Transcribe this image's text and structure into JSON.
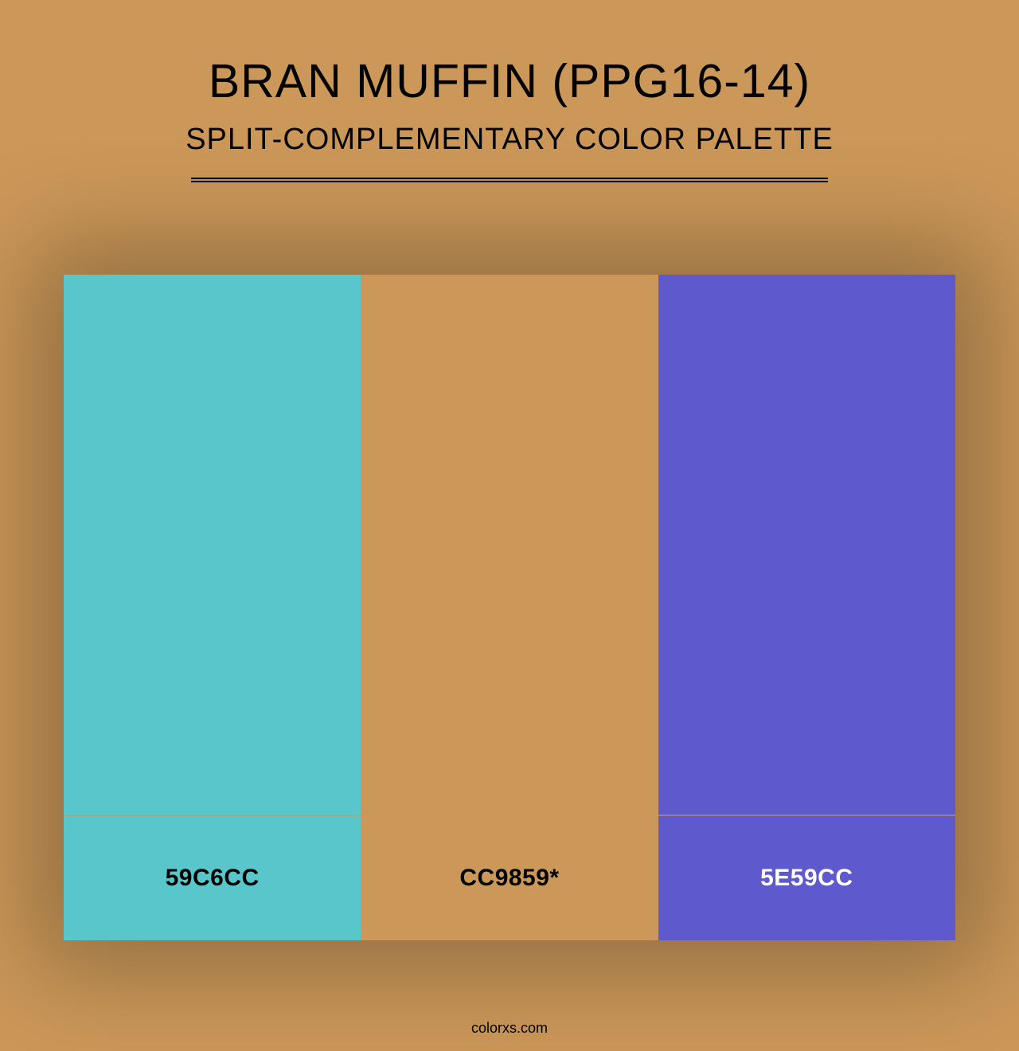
{
  "background_color": "#cc9859",
  "shadow_color": "rgba(0,0,0,0.28)",
  "title": "BRAN MUFFIN (PPG16-14)",
  "title_fontsize": 59,
  "subtitle": "SPLIT-COMPLEMENTARY COLOR PALETTE",
  "subtitle_fontsize": 38,
  "divider_width": 800,
  "palette": {
    "type": "color-palette",
    "swatch_main_height": 680,
    "swatch_label_height": 156,
    "label_fontsize": 30,
    "swatches": [
      {
        "hex": "#59c6cc",
        "label": "59C6CC",
        "label_color": "#000000"
      },
      {
        "hex": "#cc9859",
        "label": "CC9859*",
        "label_color": "#000000"
      },
      {
        "hex": "#5e59cc",
        "label": "5E59CC",
        "label_color": "#ffffff"
      }
    ]
  },
  "footer": "colorxs.com"
}
